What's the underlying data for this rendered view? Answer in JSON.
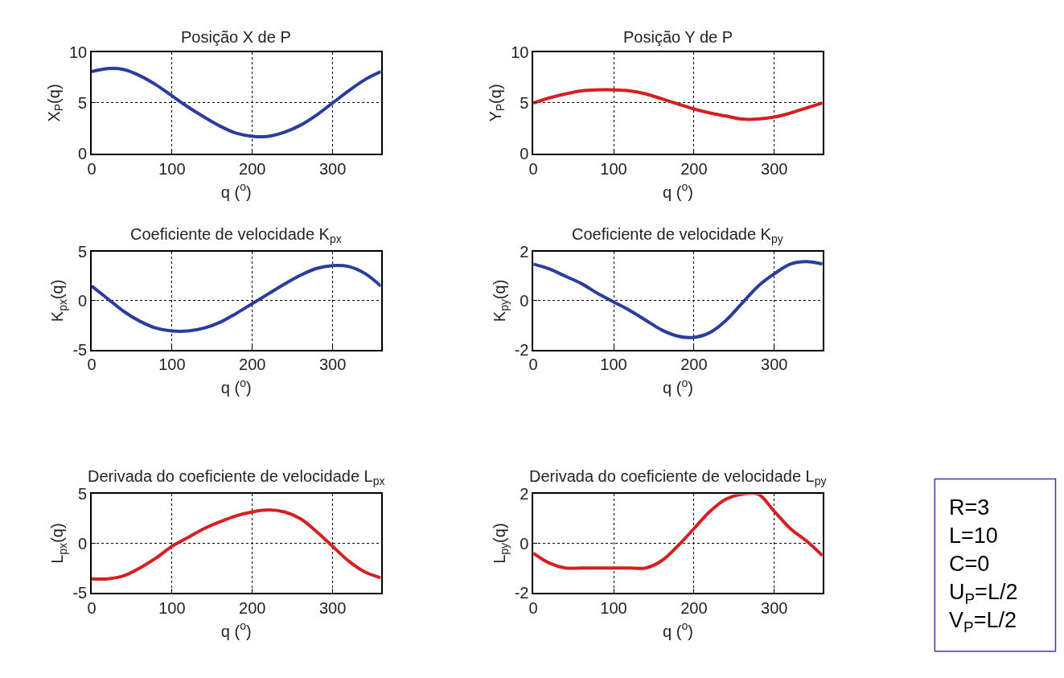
{
  "chart_data": [
    {
      "type": "line",
      "title": "Posição X de P",
      "xlabel": "q ($^{o}$)",
      "ylabel": "X$_{P}$(q)",
      "x": [
        0,
        20,
        40,
        60,
        80,
        100,
        120,
        140,
        160,
        180,
        200,
        220,
        240,
        260,
        280,
        300,
        320,
        340,
        360
      ],
      "xlim": [
        0,
        360
      ],
      "xticks": [
        0,
        100,
        200,
        300
      ],
      "ylim": [
        0,
        10
      ],
      "yticks": [
        0,
        5,
        10
      ],
      "grid": true,
      "line_style": "solid",
      "series": [
        {
          "color": "#2a3c9c",
          "values": [
            8.1,
            8.4,
            8.3,
            7.7,
            6.8,
            5.7,
            4.6,
            3.6,
            2.7,
            2.0,
            1.7,
            1.7,
            2.1,
            2.8,
            3.8,
            5.0,
            6.2,
            7.3,
            8.1
          ]
        }
      ]
    },
    {
      "type": "line",
      "title": "Posição Y de P",
      "xlabel": "q ($^{o}$)",
      "ylabel": "Y$_{P}$(q)",
      "x": [
        0,
        20,
        40,
        60,
        80,
        100,
        120,
        140,
        160,
        180,
        200,
        220,
        240,
        260,
        280,
        300,
        320,
        340,
        360
      ],
      "xlim": [
        0,
        360
      ],
      "xticks": [
        0,
        100,
        200,
        300
      ],
      "ylim": [
        0,
        10
      ],
      "yticks": [
        0,
        5,
        10
      ],
      "grid": true,
      "line_style": "solid",
      "series": [
        {
          "color": "#d42020",
          "values": [
            5.0,
            5.5,
            5.9,
            6.2,
            6.3,
            6.3,
            6.2,
            5.9,
            5.4,
            4.9,
            4.4,
            4.0,
            3.7,
            3.4,
            3.4,
            3.6,
            4.0,
            4.5,
            5.0
          ]
        }
      ]
    },
    {
      "type": "line",
      "title": "Coeficiente de velocidade K$_{px}$",
      "xlabel": "q ($^{o}$)",
      "ylabel": "K$_{px}$(q)",
      "x": [
        0,
        20,
        40,
        60,
        80,
        100,
        120,
        140,
        160,
        180,
        200,
        220,
        240,
        260,
        280,
        300,
        320,
        340,
        360
      ],
      "xlim": [
        0,
        360
      ],
      "xticks": [
        0,
        100,
        200,
        300
      ],
      "ylim": [
        -5,
        5
      ],
      "yticks": [
        -5,
        0,
        5
      ],
      "grid": true,
      "line_style": "solid",
      "series": [
        {
          "color": "#2a3c9c",
          "values": [
            1.5,
            0.2,
            -1.1,
            -2.1,
            -2.8,
            -3.1,
            -3.1,
            -2.8,
            -2.2,
            -1.3,
            -0.3,
            0.7,
            1.7,
            2.6,
            3.3,
            3.6,
            3.5,
            2.8,
            1.5
          ]
        }
      ]
    },
    {
      "type": "line",
      "title": "Coeficiente de velocidade K$_{py}$",
      "xlabel": "q ($^{o}$)",
      "ylabel": "K$_{py}$(q)",
      "x": [
        0,
        20,
        40,
        60,
        80,
        100,
        120,
        140,
        160,
        180,
        200,
        220,
        240,
        260,
        280,
        300,
        320,
        340,
        360
      ],
      "xlim": [
        0,
        360
      ],
      "xticks": [
        0,
        100,
        200,
        300
      ],
      "ylim": [
        -2,
        2
      ],
      "yticks": [
        -2,
        0,
        2
      ],
      "grid": true,
      "line_style": "solid",
      "series": [
        {
          "color": "#2a3c9c",
          "values": [
            1.5,
            1.3,
            1.0,
            0.7,
            0.3,
            -0.05,
            -0.4,
            -0.8,
            -1.2,
            -1.45,
            -1.5,
            -1.3,
            -0.8,
            -0.1,
            0.6,
            1.1,
            1.5,
            1.6,
            1.5
          ]
        }
      ]
    },
    {
      "type": "line",
      "title": "Derivada do coeficiente de velocidade L$_{px}$",
      "xlabel": "q ($^{o}$)",
      "ylabel": "L$_{px}$(q)",
      "x": [
        0,
        20,
        40,
        60,
        80,
        100,
        120,
        140,
        160,
        180,
        200,
        220,
        240,
        260,
        280,
        300,
        320,
        340,
        360
      ],
      "xlim": [
        0,
        360
      ],
      "xticks": [
        0,
        100,
        200,
        300
      ],
      "ylim": [
        -5,
        5
      ],
      "yticks": [
        -5,
        0,
        5
      ],
      "grid": true,
      "line_style": "solid",
      "series": [
        {
          "color": "#d42020",
          "values": [
            -3.6,
            -3.6,
            -3.3,
            -2.5,
            -1.5,
            -0.3,
            0.6,
            1.5,
            2.2,
            2.8,
            3.2,
            3.4,
            3.2,
            2.5,
            1.2,
            -0.3,
            -1.8,
            -2.9,
            -3.5
          ]
        }
      ]
    },
    {
      "type": "line",
      "title": "Derivada do coeficiente de velocidade L$_{py}$",
      "xlabel": "q ($^{o}$)",
      "ylabel": "L$_{py}$(q)",
      "x": [
        0,
        20,
        40,
        60,
        80,
        100,
        120,
        140,
        160,
        180,
        200,
        220,
        240,
        260,
        280,
        300,
        320,
        340,
        360
      ],
      "xlim": [
        0,
        360
      ],
      "xticks": [
        0,
        100,
        200,
        300
      ],
      "ylim": [
        -2,
        2
      ],
      "yticks": [
        -2,
        0,
        2
      ],
      "grid": true,
      "line_style": "solid",
      "series": [
        {
          "color": "#d42020",
          "values": [
            -0.4,
            -0.8,
            -1.0,
            -1.0,
            -1.0,
            -1.0,
            -1.0,
            -1.0,
            -0.7,
            -0.1,
            0.6,
            1.3,
            1.8,
            2.0,
            2.0,
            1.3,
            0.6,
            0.1,
            -0.5
          ]
        }
      ]
    },
    {
      "type": "other",
      "annotations": [
        "R=3",
        "L=10",
        "C=0",
        "U$_{P}$=L/2",
        "V$_{P}$=L/2"
      ]
    }
  ]
}
